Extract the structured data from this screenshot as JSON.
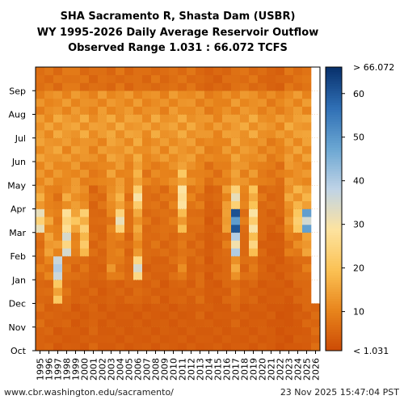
{
  "title": {
    "line1": "SHA Sacramento R, Shasta Dam (USBR)",
    "line2": "WY 1995-2026 Daily Average Reservoir Outflow",
    "line3": "Observed Range 1.031 : 66.072 TCFS"
  },
  "footer": {
    "source": "www.cbr.washington.edu/sacramento/",
    "timestamp": "23 Nov 2025 15:47:04 PST"
  },
  "chart_data": {
    "type": "heatmap",
    "title": "SHA Sacramento R, Shasta Dam (USBR)",
    "subtitle": "WY 1995-2026 Daily Average Reservoir Outflow",
    "range_label": "Observed Range 1.031 : 66.072 TCFS",
    "observed_range": [
      1.031,
      66.072
    ],
    "x_categories": [
      "1995",
      "1996",
      "1997",
      "1998",
      "1999",
      "2000",
      "2001",
      "2002",
      "2003",
      "2004",
      "2005",
      "2006",
      "2007",
      "2008",
      "2009",
      "2010",
      "2011",
      "2012",
      "2013",
      "2014",
      "2015",
      "2016",
      "2017",
      "2018",
      "2019",
      "2020",
      "2021",
      "2022",
      "2023",
      "2024",
      "2025",
      "2026"
    ],
    "y_ticks": [
      "Oct",
      "Nov",
      "Dec",
      "Jan",
      "Feb",
      "Mar",
      "Apr",
      "May",
      "Jun",
      "Jul",
      "Aug",
      "Sep"
    ],
    "colorbar": {
      "ticks": [
        10,
        20,
        30,
        40,
        50,
        60
      ],
      "min_label": "< 1.031",
      "max_label": "> 66.072",
      "range": [
        1.031,
        66.072
      ]
    },
    "colormap": [
      "#cc4a05",
      "#e8851c",
      "#fbc255",
      "#fde3a0",
      "#bfd3e6",
      "#6aa6d2",
      "#2f6fb5",
      "#08306b"
    ],
    "monthly_values_tcfs_approx": [
      {
        "year": "1995",
        "values": [
          5,
          6,
          6,
          8,
          7,
          28,
          15,
          12,
          13,
          13,
          11,
          7
        ]
      },
      {
        "year": "1996",
        "values": [
          5,
          5,
          6,
          9,
          14,
          13,
          10,
          12,
          13,
          13,
          11,
          7
        ]
      },
      {
        "year": "1997",
        "values": [
          4,
          5,
          18,
          38,
          12,
          9,
          8,
          12,
          14,
          14,
          12,
          7
        ]
      },
      {
        "year": "1998",
        "values": [
          4,
          5,
          7,
          8,
          30,
          26,
          14,
          11,
          12,
          14,
          12,
          8
        ]
      },
      {
        "year": "1999",
        "values": [
          4,
          4,
          5,
          6,
          10,
          18,
          13,
          12,
          13,
          14,
          12,
          8
        ]
      },
      {
        "year": "2000",
        "values": [
          4,
          4,
          5,
          7,
          20,
          20,
          11,
          11,
          13,
          14,
          12,
          7
        ]
      },
      {
        "year": "2001",
        "values": [
          5,
          5,
          5,
          5,
          6,
          6,
          6,
          9,
          11,
          13,
          11,
          6
        ]
      },
      {
        "year": "2002",
        "values": [
          4,
          4,
          4,
          5,
          6,
          6,
          7,
          10,
          12,
          14,
          12,
          7
        ]
      },
      {
        "year": "2003",
        "values": [
          4,
          4,
          5,
          11,
          9,
          9,
          12,
          13,
          14,
          14,
          12,
          6
        ]
      },
      {
        "year": "2004",
        "values": [
          4,
          4,
          5,
          8,
          9,
          28,
          16,
          12,
          13,
          14,
          12,
          7
        ]
      },
      {
        "year": "2005",
        "values": [
          4,
          4,
          5,
          6,
          6,
          7,
          8,
          10,
          13,
          14,
          12,
          6
        ]
      },
      {
        "year": "2006",
        "values": [
          4,
          4,
          6,
          30,
          12,
          14,
          26,
          16,
          14,
          14,
          12,
          7
        ]
      },
      {
        "year": "2007",
        "values": [
          4,
          4,
          5,
          5,
          6,
          7,
          7,
          9,
          11,
          13,
          11,
          6
        ]
      },
      {
        "year": "2008",
        "values": [
          4,
          4,
          5,
          5,
          7,
          6,
          7,
          10,
          13,
          14,
          12,
          7
        ]
      },
      {
        "year": "2009",
        "values": [
          4,
          4,
          4,
          5,
          6,
          7,
          7,
          10,
          12,
          13,
          11,
          6
        ]
      },
      {
        "year": "2010",
        "values": [
          4,
          4,
          5,
          6,
          6,
          8,
          9,
          11,
          13,
          14,
          12,
          7
        ]
      },
      {
        "year": "2011",
        "values": [
          4,
          4,
          5,
          10,
          8,
          16,
          28,
          18,
          13,
          14,
          12,
          7
        ]
      },
      {
        "year": "2012",
        "values": [
          4,
          4,
          5,
          5,
          6,
          7,
          9,
          11,
          13,
          14,
          12,
          7
        ]
      },
      {
        "year": "2013",
        "values": [
          4,
          5,
          6,
          6,
          6,
          7,
          8,
          10,
          12,
          13,
          11,
          6
        ]
      },
      {
        "year": "2014",
        "values": [
          4,
          4,
          4,
          4,
          4,
          4,
          5,
          8,
          10,
          12,
          10,
          5
        ]
      },
      {
        "year": "2015",
        "values": [
          4,
          4,
          4,
          5,
          5,
          5,
          6,
          8,
          10,
          12,
          10,
          5
        ]
      },
      {
        "year": "2016",
        "values": [
          4,
          4,
          5,
          6,
          8,
          14,
          12,
          10,
          12,
          13,
          11,
          6
        ]
      },
      {
        "year": "2017",
        "values": [
          4,
          5,
          7,
          14,
          35,
          55,
          28,
          14,
          13,
          14,
          12,
          7
        ]
      },
      {
        "year": "2018",
        "values": [
          4,
          4,
          5,
          6,
          6,
          8,
          10,
          11,
          13,
          14,
          12,
          7
        ]
      },
      {
        "year": "2019",
        "values": [
          4,
          4,
          5,
          8,
          22,
          26,
          18,
          12,
          12,
          14,
          12,
          7
        ]
      },
      {
        "year": "2020",
        "values": [
          4,
          4,
          4,
          5,
          5,
          6,
          7,
          9,
          11,
          13,
          11,
          6
        ]
      },
      {
        "year": "2021",
        "values": [
          4,
          4,
          4,
          4,
          4,
          5,
          6,
          8,
          10,
          12,
          10,
          5
        ]
      },
      {
        "year": "2022",
        "values": [
          3,
          3,
          4,
          4,
          4,
          5,
          6,
          8,
          10,
          12,
          10,
          5
        ]
      },
      {
        "year": "2023",
        "values": [
          3,
          3,
          4,
          5,
          8,
          12,
          14,
          12,
          13,
          14,
          12,
          7
        ]
      },
      {
        "year": "2024",
        "values": [
          4,
          4,
          5,
          6,
          10,
          22,
          15,
          12,
          13,
          14,
          12,
          7
        ]
      },
      {
        "year": "2025",
        "values": [
          4,
          5,
          6,
          8,
          14,
          42,
          16,
          12,
          13,
          14,
          12,
          8
        ]
      },
      {
        "year": "2026",
        "values": [
          6,
          6
        ]
      }
    ]
  }
}
